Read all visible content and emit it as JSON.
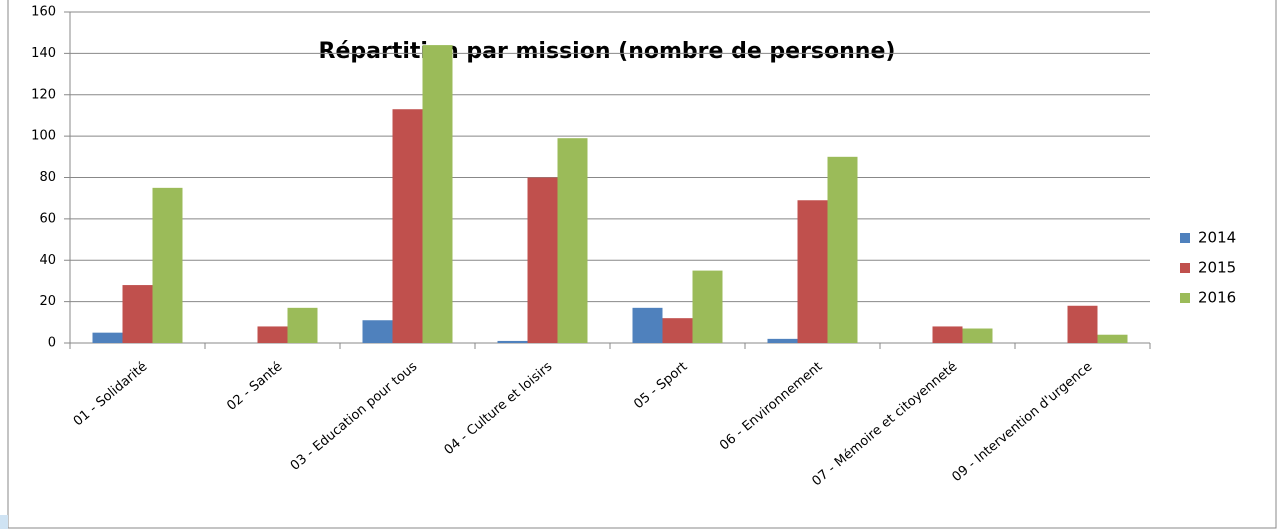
{
  "chart_data": {
    "type": "bar",
    "title": "Répartition par mission (nombre de personne)",
    "categories": [
      "01 - Solidarité",
      "02 - Santé",
      "03 - Education pour tous",
      "04 - Culture et loisirs",
      "05 - Sport",
      "06 - Environnement",
      "07 - Mémoire et citoyenneté",
      "09 - Intervention d'urgence"
    ],
    "series": [
      {
        "name": "2014",
        "color": "#4f81bd",
        "values": [
          5,
          0,
          11,
          1,
          17,
          2,
          0,
          0
        ]
      },
      {
        "name": "2015",
        "color": "#c0504d",
        "values": [
          28,
          8,
          113,
          80,
          12,
          69,
          8,
          18
        ]
      },
      {
        "name": "2016",
        "color": "#9bbb59",
        "values": [
          75,
          17,
          144,
          99,
          35,
          90,
          7,
          4
        ]
      }
    ],
    "ylim": [
      0,
      160
    ],
    "yticks": [
      0,
      20,
      40,
      60,
      80,
      100,
      120,
      140,
      160
    ],
    "grid": true,
    "legend": "right"
  }
}
